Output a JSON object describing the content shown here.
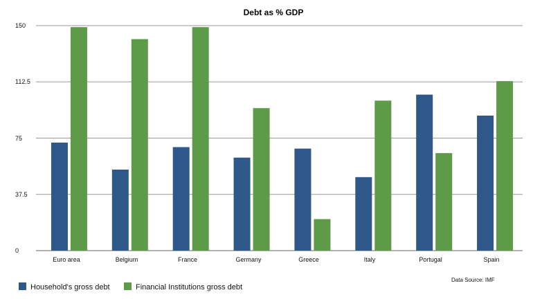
{
  "chart_data": {
    "type": "bar",
    "title": "Debt as % GDP",
    "categories": [
      "Euro area",
      "Belgium",
      "France",
      "Germany",
      "Greece",
      "Italy",
      "Portugal",
      "Spain"
    ],
    "series": [
      {
        "name": "Household's gross debt",
        "color": "#2e578a",
        "values": [
          72,
          54,
          69,
          62,
          68,
          49,
          104,
          90
        ]
      },
      {
        "name": "Financial Institutions gross debt",
        "color": "#5e9b49",
        "values": [
          149,
          141,
          149,
          95,
          21,
          100,
          65,
          113
        ]
      }
    ],
    "y_ticks": [
      "0",
      "37.5",
      "75",
      "112.5",
      "150"
    ],
    "ylim": [
      0,
      150
    ],
    "xlabel": "",
    "ylabel": "",
    "grid": true,
    "legend_position": "bottom-left",
    "source": "Data Source: IMF"
  }
}
